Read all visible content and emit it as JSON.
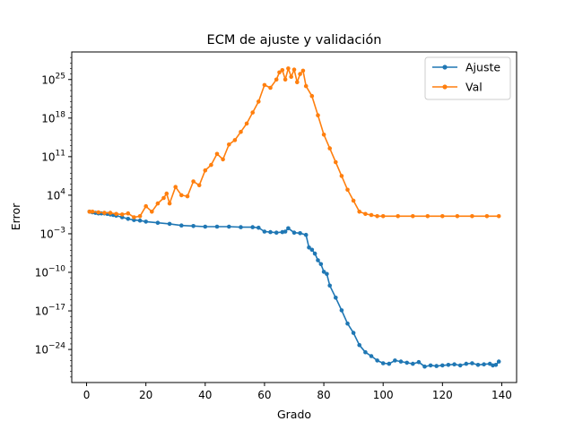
{
  "chart_data": {
    "type": "line",
    "title": "ECM de ajuste y validación",
    "xlabel": "Grado",
    "ylabel": "Error",
    "y_scale": "log10",
    "xlim": [
      -5,
      145
    ],
    "ylim_exponent": [
      -30,
      30
    ],
    "x_ticks": [
      {
        "value": 0,
        "label": "0"
      },
      {
        "value": 20,
        "label": "20"
      },
      {
        "value": 40,
        "label": "40"
      },
      {
        "value": 60,
        "label": "60"
      },
      {
        "value": 80,
        "label": "80"
      },
      {
        "value": 100,
        "label": "100"
      },
      {
        "value": 120,
        "label": "120"
      },
      {
        "value": 140,
        "label": "140"
      }
    ],
    "y_ticks": [
      {
        "exp": 25,
        "base": "10",
        "sup": "25"
      },
      {
        "exp": 18,
        "base": "10",
        "sup": "18"
      },
      {
        "exp": 11,
        "base": "10",
        "sup": "11"
      },
      {
        "exp": 4,
        "base": "10",
        "sup": "4"
      },
      {
        "exp": -3,
        "base": "10",
        "sup": "−3"
      },
      {
        "exp": -10,
        "base": "10",
        "sup": "−10"
      },
      {
        "exp": -17,
        "base": "10",
        "sup": "−17"
      },
      {
        "exp": -24,
        "base": "10",
        "sup": "−24"
      }
    ],
    "legend": {
      "placement": "top-right"
    },
    "grid": false,
    "series": [
      {
        "name": "Ajuste",
        "color": "#1f77b4",
        "x": [
          1,
          2,
          3,
          4,
          5,
          6,
          7,
          8,
          9,
          10,
          12,
          14,
          16,
          18,
          20,
          24,
          28,
          32,
          36,
          40,
          44,
          48,
          52,
          56,
          58,
          60,
          62,
          64,
          66,
          67,
          68,
          70,
          72,
          74,
          75,
          76,
          77,
          78,
          79,
          80,
          81,
          82,
          84,
          86,
          88,
          90,
          92,
          94,
          96,
          98,
          100,
          102,
          104,
          106,
          108,
          110,
          112,
          114,
          116,
          118,
          120,
          122,
          124,
          126,
          128,
          130,
          132,
          134,
          136,
          137,
          138,
          139
        ],
        "log_y": [
          1.0,
          0.9,
          0.8,
          0.7,
          0.7,
          0.7,
          0.6,
          0.5,
          0.4,
          0.3,
          0.0,
          -0.3,
          -0.5,
          -0.6,
          -0.8,
          -1.0,
          -1.2,
          -1.5,
          -1.6,
          -1.7,
          -1.7,
          -1.7,
          -1.8,
          -1.8,
          -1.9,
          -2.6,
          -2.7,
          -2.8,
          -2.7,
          -2.6,
          -2.0,
          -2.8,
          -2.9,
          -3.2,
          -5.5,
          -5.9,
          -6.6,
          -7.8,
          -8.5,
          -9.9,
          -10.3,
          -12.4,
          -14.6,
          -16.9,
          -19.3,
          -21.0,
          -23.2,
          -24.5,
          -25.2,
          -26.0,
          -26.5,
          -26.6,
          -26.0,
          -26.2,
          -26.4,
          -26.6,
          -26.3,
          -27.1,
          -26.9,
          -27.0,
          -26.9,
          -26.8,
          -26.7,
          -26.9,
          -26.6,
          -26.5,
          -26.8,
          -26.7,
          -26.6,
          -26.9,
          -26.8,
          -26.2
        ],
        "label": "Ajuste"
      },
      {
        "name": "Val",
        "color": "#ff7f0e",
        "x": [
          1,
          2,
          4,
          6,
          8,
          10,
          12,
          14,
          16,
          18,
          20,
          22,
          24,
          26,
          27,
          28,
          30,
          32,
          34,
          36,
          38,
          40,
          42,
          44,
          46,
          48,
          50,
          52,
          54,
          56,
          58,
          60,
          62,
          64,
          65,
          66,
          67,
          68,
          69,
          70,
          71,
          72,
          73,
          74,
          76,
          78,
          80,
          82,
          84,
          86,
          88,
          90,
          92,
          94,
          96,
          98,
          100,
          105,
          110,
          115,
          120,
          125,
          130,
          135,
          139
        ],
        "log_y": [
          1.0,
          1.0,
          0.9,
          0.8,
          0.8,
          0.6,
          0.5,
          0.7,
          0.0,
          0.2,
          2.0,
          1.0,
          2.5,
          3.5,
          4.3,
          2.5,
          5.5,
          4.0,
          3.8,
          6.5,
          5.8,
          8.5,
          9.5,
          11.5,
          10.5,
          13.2,
          14.0,
          15.5,
          17.0,
          19.0,
          21.0,
          24.0,
          23.5,
          25.0,
          26.3,
          26.7,
          25.0,
          27.0,
          25.5,
          26.8,
          24.5,
          26.0,
          26.6,
          23.8,
          22.0,
          18.5,
          15.0,
          12.5,
          10.0,
          7.5,
          5.0,
          3.0,
          1.0,
          0.6,
          0.4,
          0.2,
          0.2,
          0.2,
          0.2,
          0.2,
          0.2,
          0.2,
          0.2,
          0.2,
          0.2
        ],
        "label": "Val"
      }
    ]
  }
}
